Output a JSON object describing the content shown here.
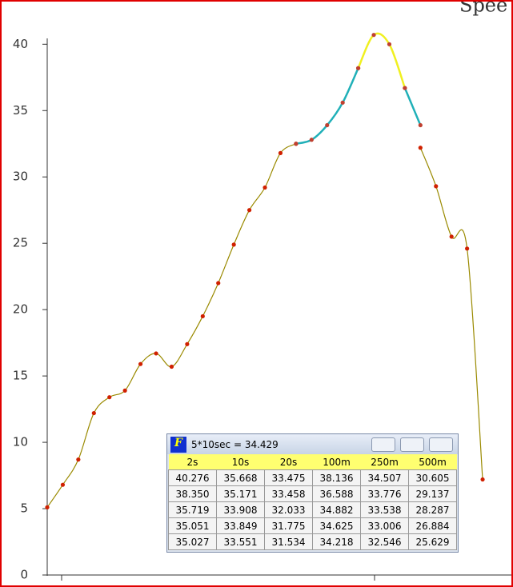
{
  "chart_data": {
    "type": "line",
    "title": "Spee",
    "x": [
      0,
      1,
      2,
      3,
      4,
      5,
      6,
      7,
      8,
      9,
      10,
      11,
      12,
      13,
      14,
      15,
      16,
      17,
      18,
      19,
      20,
      21,
      22,
      23,
      24,
      25,
      26,
      27,
      28,
      29
    ],
    "xlim": [
      0,
      29.85
    ],
    "series": [
      {
        "color": "#9a8a00",
        "values": [
          5.1,
          6.8,
          8.7,
          12.2,
          13.4,
          13.9,
          15.9,
          16.7,
          15.7,
          17.4,
          19.5,
          22.0,
          24.9,
          27.5,
          29.2,
          31.8,
          32.5,
          null,
          null,
          null,
          null,
          null,
          null,
          null,
          32.2,
          29.3,
          25.5,
          24.6,
          7.2,
          null
        ]
      },
      {
        "color": "#20b0b8",
        "values": [
          null,
          null,
          null,
          null,
          null,
          null,
          null,
          null,
          null,
          null,
          null,
          null,
          null,
          null,
          null,
          null,
          32.5,
          32.8,
          33.9,
          35.6,
          38.2,
          null,
          null,
          36.7,
          33.9,
          null,
          null,
          null,
          null,
          null
        ]
      },
      {
        "color": "#f0f020",
        "values": [
          null,
          null,
          null,
          null,
          null,
          null,
          null,
          null,
          null,
          null,
          null,
          null,
          null,
          null,
          null,
          null,
          null,
          null,
          null,
          null,
          38.2,
          40.7,
          40.0,
          36.7,
          null,
          null,
          null,
          null,
          null,
          null
        ]
      }
    ],
    "ylim": [
      0,
      40.2
    ],
    "yticks": [
      0,
      5,
      10,
      15,
      20,
      25,
      30,
      35,
      40
    ]
  },
  "window": {
    "title": "5*10sec = 34.429",
    "columns": [
      "2s",
      "10s",
      "20s",
      "100m",
      "250m",
      "500m"
    ],
    "rows": [
      [
        "40.276",
        "35.668",
        "33.475",
        "38.136",
        "34.507",
        "30.605"
      ],
      [
        "38.350",
        "35.171",
        "33.458",
        "36.588",
        "33.776",
        "29.137"
      ],
      [
        "35.719",
        "33.908",
        "32.033",
        "34.882",
        "33.538",
        "28.287"
      ],
      [
        "35.051",
        "33.849",
        "31.775",
        "34.625",
        "33.006",
        "26.884"
      ],
      [
        "35.027",
        "33.551",
        "31.534",
        "34.218",
        "32.546",
        "25.629"
      ]
    ]
  }
}
